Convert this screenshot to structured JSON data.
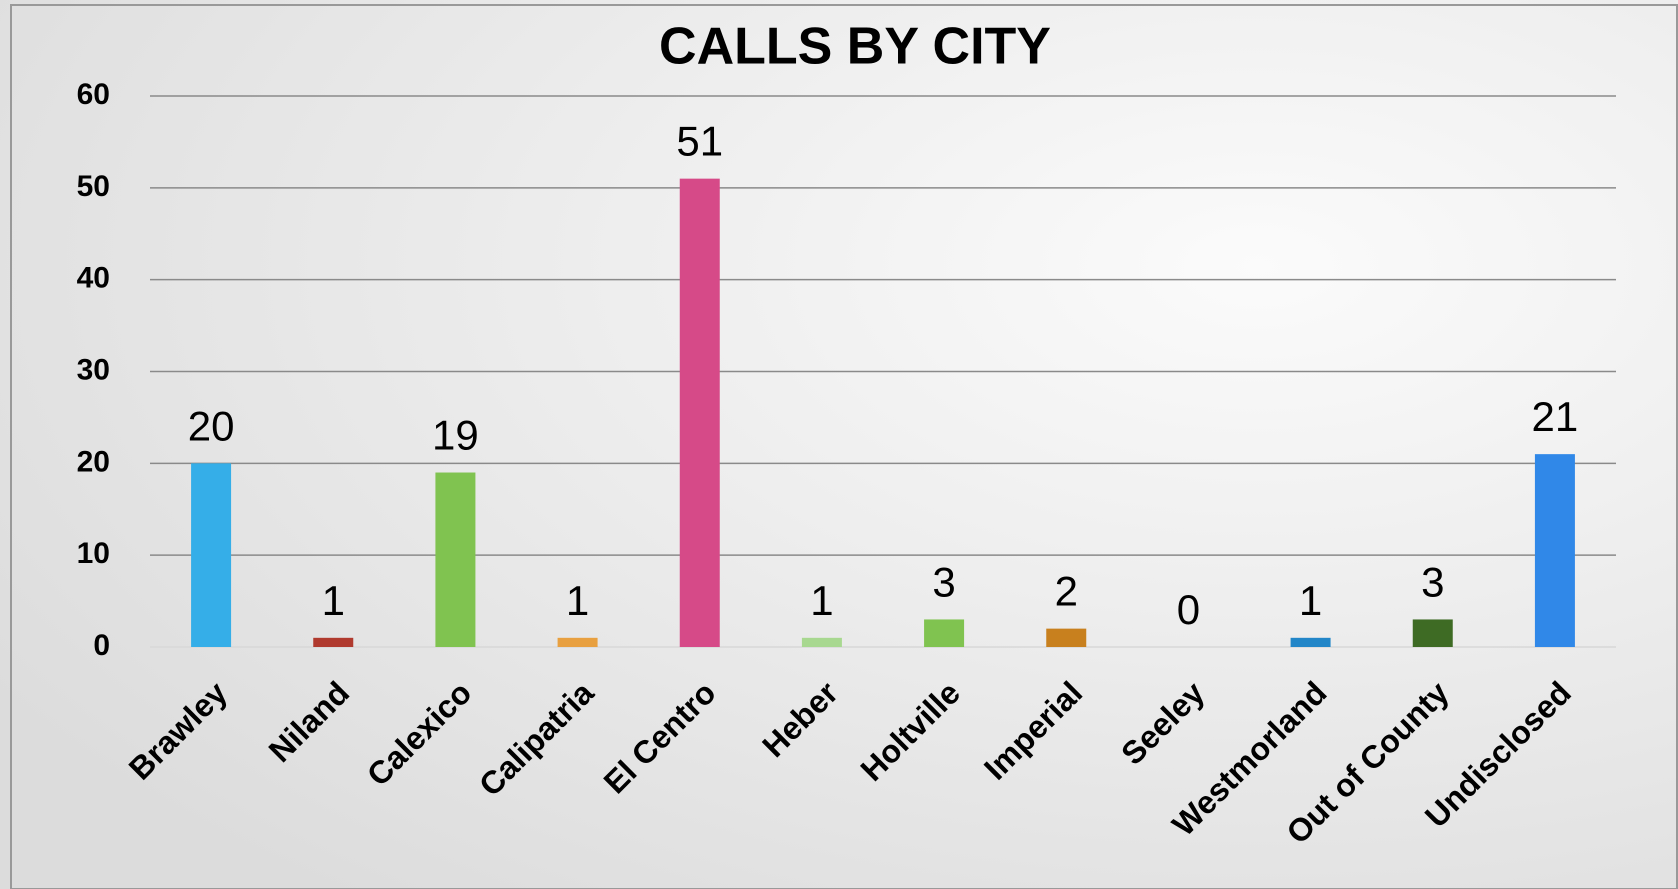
{
  "chart_data": {
    "type": "bar",
    "title": "CALLS BY CITY",
    "categories": [
      "Brawley",
      "Niland",
      "Calexico",
      "Calipatria",
      "El Centro",
      "Heber",
      "Holtville",
      "Imperial",
      "Seeley",
      "Westmorland",
      "Out of County",
      "Undisclosed"
    ],
    "values": [
      20,
      1,
      19,
      1,
      51,
      1,
      3,
      2,
      0,
      1,
      3,
      21
    ],
    "colors": [
      "#35aee8",
      "#b03a2e",
      "#80c350",
      "#e8a040",
      "#d64a88",
      "#a8d890",
      "#80c350",
      "#c8801e",
      "#888888",
      "#2286c8",
      "#3e6b24",
      "#3088e8"
    ],
    "ylim": [
      0,
      60
    ],
    "yticks": [
      0,
      10,
      20,
      30,
      40,
      50,
      60
    ],
    "grid": true
  }
}
